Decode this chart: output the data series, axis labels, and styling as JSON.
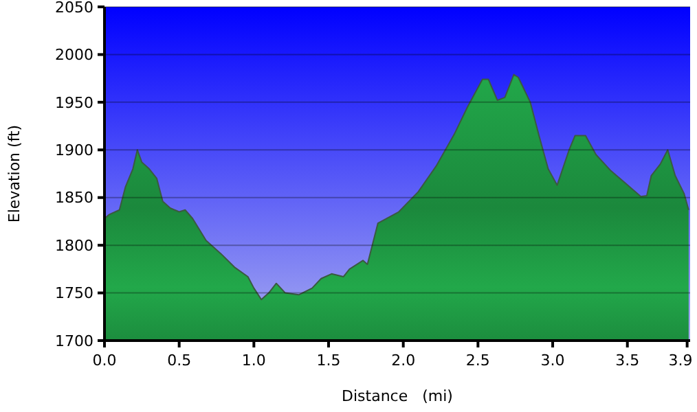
{
  "chart_data": {
    "type": "area",
    "xlabel": "Distance   (mi)",
    "ylabel": "Elevation (ft)",
    "xlim": [
      0,
      3.92
    ],
    "ylim": [
      1700,
      2050
    ],
    "xticks": [
      {
        "value": 0,
        "label": "0.0"
      },
      0.5,
      {
        "value": 1,
        "label": "1.0"
      },
      1.5,
      {
        "value": 2,
        "label": "2.0"
      },
      2.5,
      {
        "value": 3,
        "label": "3.0"
      },
      3.5,
      3.9
    ],
    "yticks": [
      1700,
      1750,
      1800,
      1850,
      1900,
      1950,
      2000,
      2050
    ],
    "grid": "y",
    "series": [
      {
        "color": "#22a84a",
        "x": [
          0,
          0.03,
          0.1,
          0.14,
          0.19,
          0.22,
          0.25,
          0.3,
          0.35,
          0.39,
          0.44,
          0.5,
          0.54,
          0.59,
          0.68,
          0.78,
          0.87,
          0.96,
          1.0,
          1.05,
          1.1,
          1.15,
          1.21,
          1.3,
          1.39,
          1.45,
          1.52,
          1.6,
          1.64,
          1.73,
          1.76,
          1.83,
          1.97,
          2.1,
          2.22,
          2.34,
          2.43,
          2.53,
          2.57,
          2.63,
          2.68,
          2.74,
          2.77,
          2.85,
          2.91,
          2.97,
          3.03,
          3.11,
          3.15,
          3.22,
          3.29,
          3.39,
          3.48,
          3.59,
          3.63,
          3.66,
          3.72,
          3.77,
          3.82,
          3.88,
          3.91
        ],
        "values": [
          1828,
          1832,
          1837,
          1861,
          1880,
          1900,
          1887,
          1880,
          1870,
          1846,
          1839,
          1835,
          1837,
          1828,
          1805,
          1791,
          1777,
          1767,
          1755,
          1743,
          1750,
          1760,
          1750,
          1748,
          1755,
          1765,
          1770,
          1767,
          1775,
          1784,
          1780,
          1823,
          1835,
          1856,
          1883,
          1916,
          1945,
          1974,
          1974,
          1952,
          1955,
          1979,
          1976,
          1950,
          1914,
          1880,
          1863,
          1900,
          1915,
          1915,
          1895,
          1878,
          1866,
          1851,
          1852,
          1873,
          1885,
          1900,
          1873,
          1854,
          1837
        ]
      }
    ]
  }
}
